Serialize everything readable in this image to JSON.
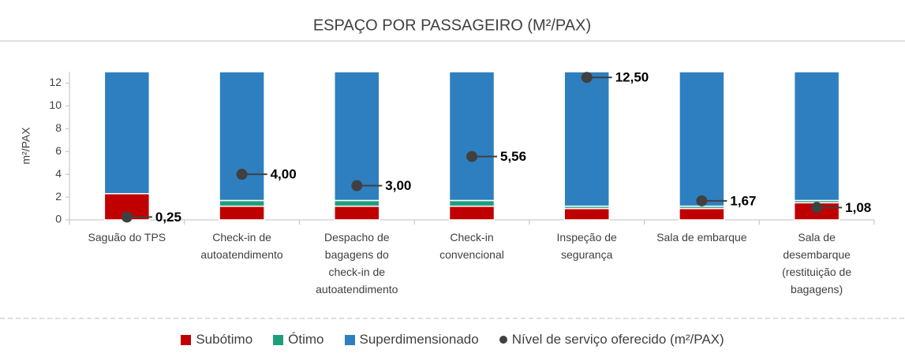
{
  "chart_data": {
    "type": "bar",
    "stacked": true,
    "title": "ESPAÇO POR PASSAGEIRO (M²/PAX)",
    "ylabel": "m²/PAX",
    "categories": [
      "Saguão do TPS",
      "Check-in de autoatendimento",
      "Despacho de bagagens do check-in de autoatendimento",
      "Check-in convencional",
      "Inspeção de segurança",
      "Sala de embarque",
      "Sala de desembarque (restituição de bagagens)"
    ],
    "series": [
      {
        "name": "Subótimo",
        "color": "#c00000",
        "values": [
          2.3,
          1.2,
          1.2,
          1.2,
          1.0,
          1.0,
          1.5
        ]
      },
      {
        "name": "Ótimo",
        "color": "#1f9e7e",
        "values": [
          0,
          0.5,
          0.5,
          0.5,
          0.2,
          0.2,
          0.2
        ]
      },
      {
        "name": "Superdimensionado",
        "color": "#2e7fbf",
        "values": [
          10.7,
          11.3,
          11.3,
          11.3,
          11.8,
          11.8,
          11.3
        ]
      }
    ],
    "points": {
      "name": "Nível de serviço oferecido (m²/PAX)",
      "color": "#404040",
      "values": [
        0.25,
        4.0,
        3.0,
        5.56,
        12.5,
        1.67,
        1.08
      ],
      "value_labels": [
        "0,25",
        "4,00",
        "3,00",
        "5,56",
        "12,50",
        "1,67",
        "1,08"
      ]
    },
    "ylim": [
      0,
      13
    ],
    "yticks": [
      0,
      2,
      4,
      6,
      8,
      10,
      12
    ]
  }
}
